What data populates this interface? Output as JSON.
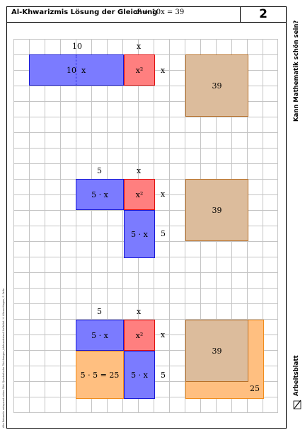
{
  "header": {
    "title": "Al-Khwarizmis Lösung der Gleichung",
    "equation": "x² + 10x = 39",
    "sheet_number": "2"
  },
  "sidebar": {
    "series_title": "Kann Mathematik schön sein?",
    "document_type": "Arbeitsblatt"
  },
  "footer": {
    "credits": "Alte Bekannte entspannt neben Süd: Quadratische Gleichungen jahrhundertealt tiefleitet. H. Altenschlagen, S. Seite"
  },
  "figure1": {
    "top_label_10": "10",
    "top_label_x": "x",
    "rect_left_label": "10",
    "rect_right_label": "x",
    "square_label": "x²",
    "side_label": "x",
    "area_label": "39"
  },
  "figure2": {
    "top_label_5": "5",
    "top_label_x": "x",
    "rect_top_label": "5 · x",
    "square_label": "x²",
    "side_label_x": "x",
    "rect_bottom_label": "5 · x",
    "side_label_5": "5",
    "area_label": "39"
  },
  "figure3": {
    "top_label_5": "5",
    "top_label_x": "x",
    "rect_top_label": "5 · x",
    "square_label": "x²",
    "side_label_x": "x",
    "corner_label": "5 · 5 = 25",
    "rect_bottom_label": "5 · x",
    "side_label_5": "5",
    "area_label": "39",
    "added_label": "25"
  },
  "colors": {
    "blue": "#7b7bff",
    "red": "#ff7f7f",
    "tan": "#dcbc9c",
    "orange": "#ffbf80"
  }
}
